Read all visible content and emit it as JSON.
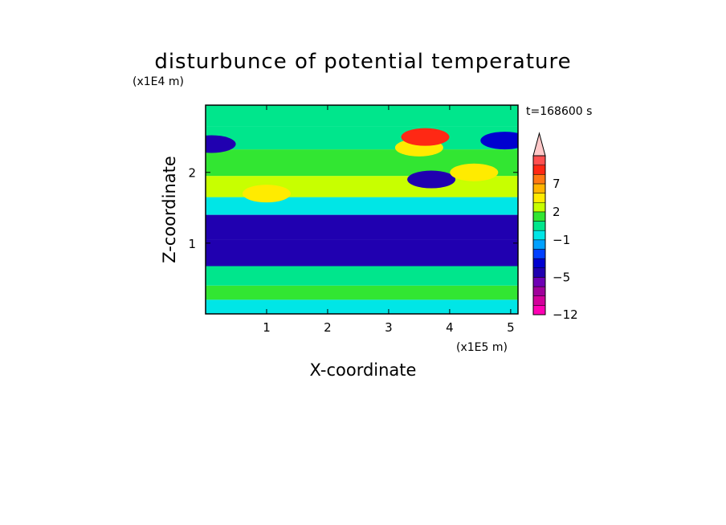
{
  "chart_data": {
    "type": "heatmap",
    "title": "disturbunce of potential temperature",
    "xlabel": "X-coordinate",
    "ylabel": "Z-coordinate",
    "x_unit": "(x1E5 m)",
    "y_unit": "(x1E4 m)",
    "time_label": "t=168600 s",
    "xlim": [
      0,
      5.12
    ],
    "ylim": [
      0,
      2.95
    ],
    "x_ticks": [
      "1",
      "2",
      "3",
      "4",
      "5"
    ],
    "y_ticks": [
      "1",
      "2"
    ],
    "colorbar": {
      "levels": [
        -12,
        -10,
        -8,
        -6,
        -5,
        -4,
        -3,
        -2,
        -1,
        0,
        1,
        2,
        3,
        5,
        7,
        8,
        9,
        11
      ],
      "colors": [
        "#ff00b4",
        "#d2009b",
        "#a0009b",
        "#6e00b4",
        "#2000b0",
        "#0000d0",
        "#0040ff",
        "#00a0ff",
        "#00e6e6",
        "#00e68c",
        "#32e632",
        "#c8ff00",
        "#ffeb00",
        "#ffb400",
        "#ff7814",
        "#ff2814",
        "#ff5050",
        "#ffc8c8"
      ],
      "tick_labels": [
        "-12",
        "-5",
        "-1",
        "2",
        "7"
      ]
    },
    "bands": [
      {
        "z": 0.1,
        "value": -0.5
      },
      {
        "z": 0.3,
        "value": 1.5
      },
      {
        "z": 0.5,
        "value": 0.5
      },
      {
        "z": 0.85,
        "value": -5
      },
      {
        "z": 1.25,
        "value": -5
      },
      {
        "z": 1.55,
        "value": -0.5
      },
      {
        "z": 1.75,
        "value": 2.5
      },
      {
        "z": 2.15,
        "value": 1
      },
      {
        "z": 2.5,
        "value": 0.5
      },
      {
        "z": 2.8,
        "value": 0.5
      }
    ],
    "features": [
      {
        "x": 3.5,
        "z": 2.35,
        "value": 4,
        "label": "warm anomaly"
      },
      {
        "x": 3.6,
        "z": 2.5,
        "value": 8,
        "label": "warm core"
      },
      {
        "x": 3.7,
        "z": 1.9,
        "value": -5,
        "label": "cold anomaly"
      },
      {
        "x": 0.1,
        "z": 2.4,
        "value": -5,
        "label": "cold anomaly"
      },
      {
        "x": 4.9,
        "z": 2.45,
        "value": -4,
        "label": "cold anomaly"
      },
      {
        "x": 1.0,
        "z": 1.7,
        "value": 3,
        "label": "warm anomaly"
      },
      {
        "x": 4.4,
        "z": 2.0,
        "value": 3,
        "label": "warm anomaly"
      }
    ]
  }
}
